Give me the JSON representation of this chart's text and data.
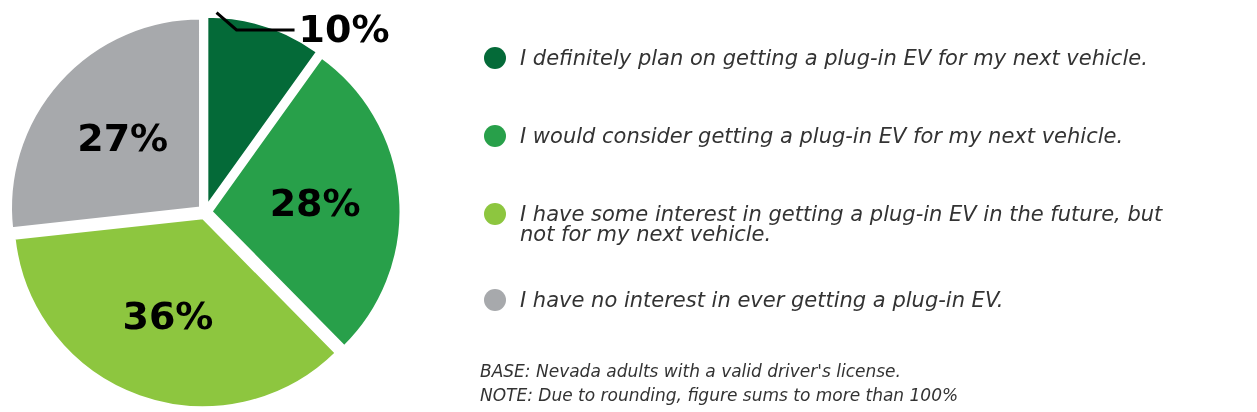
{
  "chart_data": {
    "type": "pie",
    "categories": [
      "I definitely plan on getting a plug-in EV for my next vehicle.",
      "I would consider getting a plug-in EV for my next vehicle.",
      "I have some interest in getting a plug-in EV in the future, but not for my next vehicle.",
      "I have no interest in ever getting a plug-in EV."
    ],
    "values": [
      10,
      28,
      36,
      27
    ],
    "colors": [
      "#046a38",
      "#28a04a",
      "#8dc63f",
      "#a7a9ac"
    ],
    "value_labels": [
      "10%",
      "28%",
      "36%",
      "27%"
    ],
    "legend": "right",
    "annotations": [
      "BASE: Nevada adults with a valid driver's license.",
      "NOTE: Due to rounding, figure sums to more than 100%"
    ]
  }
}
